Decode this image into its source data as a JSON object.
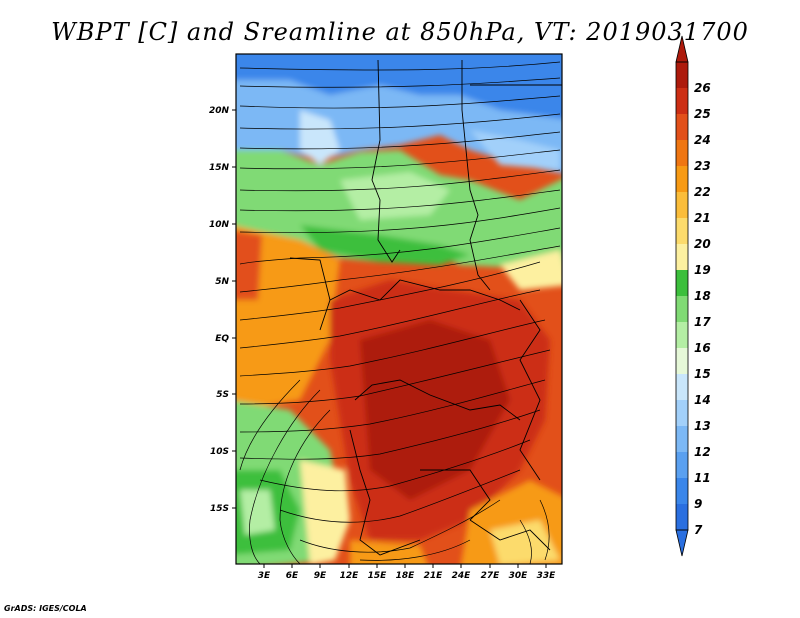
{
  "title": "WBPT [C] and Sreamline at 850hPa, VT: 2019031700",
  "credit": "GrADS: IGES/COLA",
  "lat_labels": [
    "20N",
    "15N",
    "10N",
    "5N",
    "EQ",
    "5S",
    "10S",
    "15S"
  ],
  "lon_labels": [
    "3E",
    "6E",
    "9E",
    "12E",
    "15E",
    "18E",
    "21E",
    "24E",
    "27E",
    "30E",
    "33E"
  ],
  "colorbar": {
    "labels": [
      "7",
      "9",
      "11",
      "12",
      "13",
      "14",
      "15",
      "16",
      "17",
      "18",
      "19",
      "20",
      "21",
      "22",
      "23",
      "24",
      "25",
      "26"
    ],
    "colors": [
      "#2a6fe0",
      "#3a86ea",
      "#5aa0f0",
      "#7cb8f5",
      "#a2d0fa",
      "#c9e6fb",
      "#e6f8d8",
      "#b4eea4",
      "#80da74",
      "#3cbf3c",
      "#fdf0a0",
      "#fcdb6c",
      "#fbbd3a",
      "#f79a14",
      "#ef7612",
      "#e2501a",
      "#cc2e14",
      "#ad1a0c"
    ]
  },
  "palette": {
    "blue_deep": "#3a86ea",
    "blue_light": "#7cb8f5",
    "pale_cyan": "#c9e6fb",
    "green_light": "#b4eea4",
    "green": "#80da74",
    "green_deep": "#3cbf3c",
    "yellow": "#fdf0a0",
    "orange": "#f79a14",
    "orange_red": "#e2501a",
    "red": "#cc2e14",
    "dark_red": "#ad1a0c"
  }
}
